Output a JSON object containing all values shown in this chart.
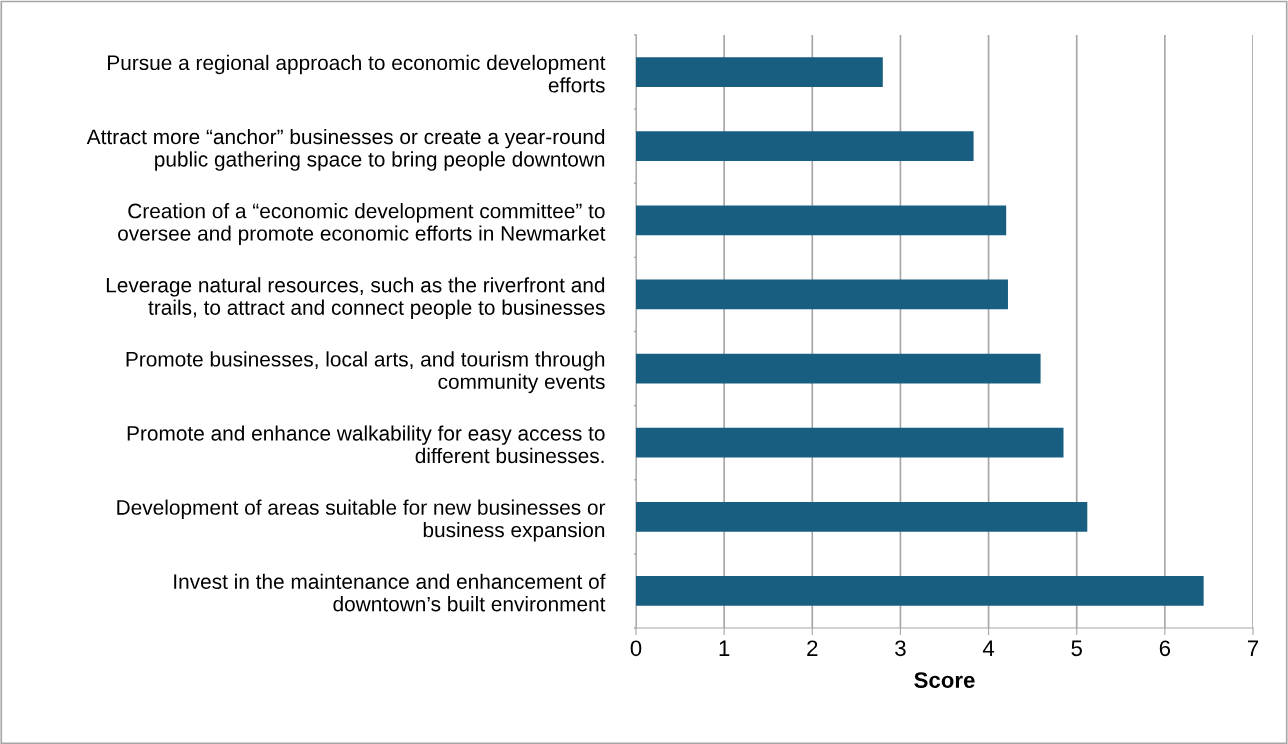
{
  "chart_data": {
    "type": "bar",
    "orientation": "horizontal",
    "xlabel": "Score",
    "categories": [
      "Pursue a regional approach to economic development\nefforts",
      "Attract more “anchor” businesses or create a year-round\npublic gathering space to bring people downtown",
      "Creation of a “economic development committee” to\noversee and promote economic efforts in Newmarket",
      "Leverage natural resources, such as the riverfront and\ntrails, to attract and connect people to businesses",
      "Promote businesses, local arts, and tourism through\ncommunity events",
      "Promote and enhance walkability for easy access to\ndifferent businesses.",
      "Development of areas suitable for new businesses or\nbusiness expansion",
      "Invest in the maintenance and enhancement of\ndowntown’s built environment"
    ],
    "values": [
      2.8,
      3.83,
      4.2,
      4.22,
      4.59,
      4.85,
      5.12,
      6.44
    ],
    "color": "#175e81",
    "xlim": [
      0,
      7
    ],
    "xticks": [
      0,
      1,
      2,
      3,
      4,
      5,
      6,
      7
    ],
    "grid": "x"
  }
}
